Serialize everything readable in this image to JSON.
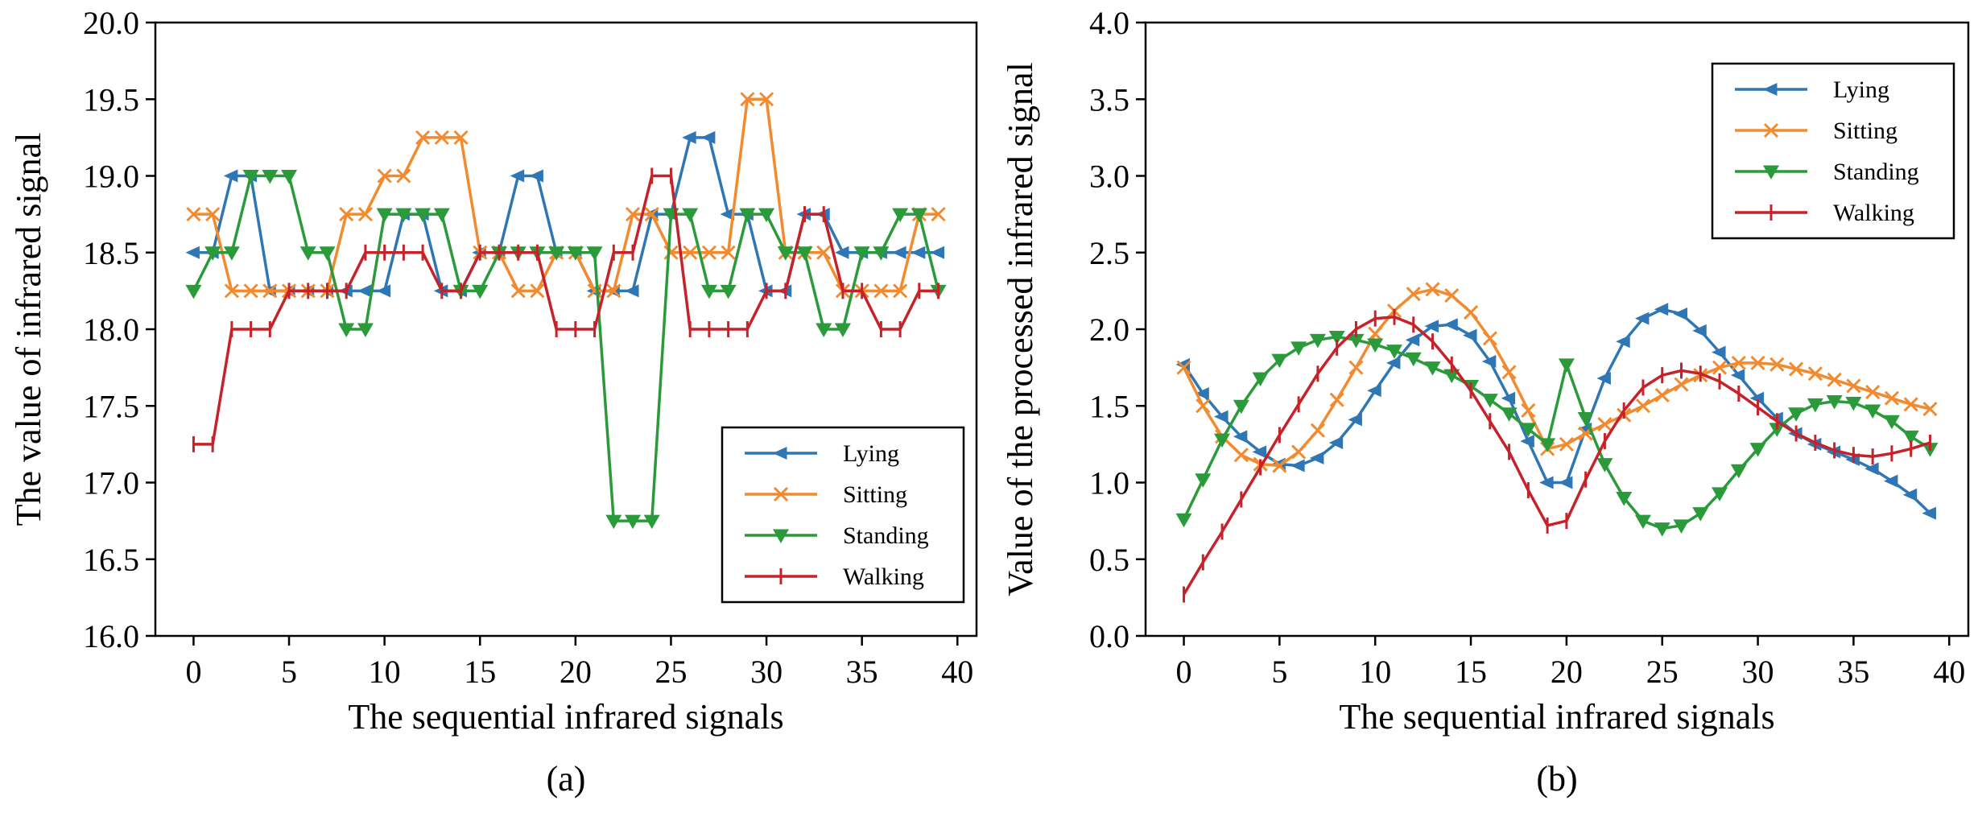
{
  "chart_data": [
    {
      "type": "line",
      "panel_label": "(a)",
      "xlabel": "The sequential infrared signals",
      "ylabel": "The value of infrared signal",
      "xlim": [
        -2,
        41
      ],
      "ylim": [
        16.0,
        20.0
      ],
      "xticks": [
        0,
        5,
        10,
        15,
        20,
        25,
        30,
        35,
        40
      ],
      "xtick_labels": [
        "0",
        "5",
        "10",
        "15",
        "20",
        "25",
        "30",
        "35",
        "40"
      ],
      "yticks": [
        16.0,
        16.5,
        17.0,
        17.5,
        18.0,
        18.5,
        19.0,
        19.5,
        20.0
      ],
      "ytick_labels": [
        "16.0",
        "16.5",
        "17.0",
        "17.5",
        "18.0",
        "18.5",
        "19.0",
        "19.5",
        "20.0"
      ],
      "grid": false,
      "legend_position": "lower-right",
      "series": [
        {
          "name": "Lying",
          "color": "#2f77b4",
          "marker": "left-triangle",
          "values": [
            18.5,
            18.5,
            19.0,
            19.0,
            18.25,
            18.25,
            18.25,
            18.25,
            18.25,
            18.25,
            18.25,
            18.75,
            18.75,
            18.25,
            18.25,
            18.5,
            18.5,
            19.0,
            19.0,
            18.5,
            18.5,
            18.25,
            18.25,
            18.25,
            18.75,
            18.75,
            19.25,
            19.25,
            18.75,
            18.75,
            18.25,
            18.25,
            18.75,
            18.75,
            18.5,
            18.5,
            18.5,
            18.5,
            18.5,
            18.5
          ]
        },
        {
          "name": "Sitting",
          "color": "#f28a30",
          "marker": "x",
          "values": [
            18.75,
            18.75,
            18.25,
            18.25,
            18.25,
            18.25,
            18.25,
            18.25,
            18.75,
            18.75,
            19.0,
            19.0,
            19.25,
            19.25,
            19.25,
            18.5,
            18.5,
            18.25,
            18.25,
            18.5,
            18.5,
            18.25,
            18.25,
            18.75,
            18.75,
            18.5,
            18.5,
            18.5,
            18.5,
            19.5,
            19.5,
            18.5,
            18.5,
            18.5,
            18.25,
            18.25,
            18.25,
            18.25,
            18.75,
            18.75
          ]
        },
        {
          "name": "Standing",
          "color": "#2a9a3a",
          "marker": "down-triangle",
          "values": [
            18.25,
            18.5,
            18.5,
            19.0,
            19.0,
            19.0,
            18.5,
            18.5,
            18.0,
            18.0,
            18.75,
            18.75,
            18.75,
            18.75,
            18.25,
            18.25,
            18.5,
            18.5,
            18.5,
            18.5,
            18.5,
            18.5,
            16.75,
            16.75,
            16.75,
            18.75,
            18.75,
            18.25,
            18.25,
            18.75,
            18.75,
            18.5,
            18.5,
            18.0,
            18.0,
            18.5,
            18.5,
            18.75,
            18.75,
            18.25
          ]
        },
        {
          "name": "Walking",
          "color": "#c5222a",
          "marker": "plus",
          "values": [
            17.25,
            17.25,
            18.0,
            18.0,
            18.0,
            18.25,
            18.25,
            18.25,
            18.25,
            18.5,
            18.5,
            18.5,
            18.5,
            18.25,
            18.25,
            18.5,
            18.5,
            18.5,
            18.5,
            18.0,
            18.0,
            18.0,
            18.5,
            18.5,
            19.0,
            19.0,
            18.0,
            18.0,
            18.0,
            18.0,
            18.25,
            18.25,
            18.75,
            18.75,
            18.25,
            18.25,
            18.0,
            18.0,
            18.25,
            18.25
          ]
        }
      ]
    },
    {
      "type": "line",
      "panel_label": "(b)",
      "xlabel": "The sequential infrared signals",
      "ylabel": "Value of the processed infrared signal",
      "xlim": [
        -2,
        41
      ],
      "ylim": [
        0.0,
        4.0
      ],
      "xticks": [
        0,
        5,
        10,
        15,
        20,
        25,
        30,
        35,
        40
      ],
      "xtick_labels": [
        "0",
        "5",
        "10",
        "15",
        "20",
        "25",
        "30",
        "35",
        "40"
      ],
      "yticks": [
        0.0,
        0.5,
        1.0,
        1.5,
        2.0,
        2.5,
        3.0,
        3.5,
        4.0
      ],
      "ytick_labels": [
        "0.0",
        "0.5",
        "1.0",
        "1.5",
        "2.0",
        "2.5",
        "3.0",
        "3.5",
        "4.0"
      ],
      "grid": false,
      "legend_position": "top-right",
      "series": [
        {
          "name": "Lying",
          "color": "#2f77b4",
          "marker": "left-triangle",
          "values": [
            1.77,
            1.58,
            1.43,
            1.3,
            1.2,
            1.12,
            1.11,
            1.16,
            1.26,
            1.41,
            1.6,
            1.78,
            1.93,
            2.02,
            2.03,
            1.96,
            1.79,
            1.55,
            1.27,
            1.0,
            1.0,
            1.35,
            1.68,
            1.92,
            2.07,
            2.13,
            2.1,
            1.99,
            1.85,
            1.7,
            1.55,
            1.42,
            1.32,
            1.25,
            1.2,
            1.15,
            1.09,
            1.01,
            0.92,
            0.8
          ]
        },
        {
          "name": "Sitting",
          "color": "#f28a30",
          "marker": "x",
          "values": [
            1.75,
            1.5,
            1.3,
            1.18,
            1.12,
            1.11,
            1.2,
            1.34,
            1.54,
            1.75,
            1.97,
            2.12,
            2.23,
            2.26,
            2.22,
            2.11,
            1.94,
            1.72,
            1.47,
            1.22,
            1.25,
            1.32,
            1.38,
            1.44,
            1.5,
            1.57,
            1.64,
            1.7,
            1.75,
            1.78,
            1.78,
            1.77,
            1.74,
            1.71,
            1.67,
            1.63,
            1.59,
            1.55,
            1.51,
            1.48
          ]
        },
        {
          "name": "Standing",
          "color": "#2a9a3a",
          "marker": "down-triangle",
          "values": [
            0.76,
            1.02,
            1.28,
            1.5,
            1.68,
            1.8,
            1.88,
            1.93,
            1.95,
            1.93,
            1.9,
            1.86,
            1.81,
            1.75,
            1.7,
            1.63,
            1.54,
            1.45,
            1.35,
            1.25,
            1.77,
            1.42,
            1.12,
            0.9,
            0.75,
            0.7,
            0.72,
            0.8,
            0.93,
            1.08,
            1.22,
            1.35,
            1.45,
            1.51,
            1.53,
            1.52,
            1.47,
            1.4,
            1.3,
            1.22
          ]
        },
        {
          "name": "Walking",
          "color": "#c5222a",
          "marker": "plus",
          "values": [
            0.27,
            0.48,
            0.68,
            0.89,
            1.1,
            1.31,
            1.51,
            1.71,
            1.88,
            2.0,
            2.07,
            2.08,
            2.03,
            1.92,
            1.77,
            1.6,
            1.4,
            1.2,
            0.95,
            0.72,
            0.75,
            1.02,
            1.27,
            1.47,
            1.62,
            1.7,
            1.73,
            1.71,
            1.66,
            1.58,
            1.49,
            1.4,
            1.32,
            1.26,
            1.21,
            1.18,
            1.17,
            1.19,
            1.22,
            1.26
          ]
        }
      ]
    }
  ]
}
